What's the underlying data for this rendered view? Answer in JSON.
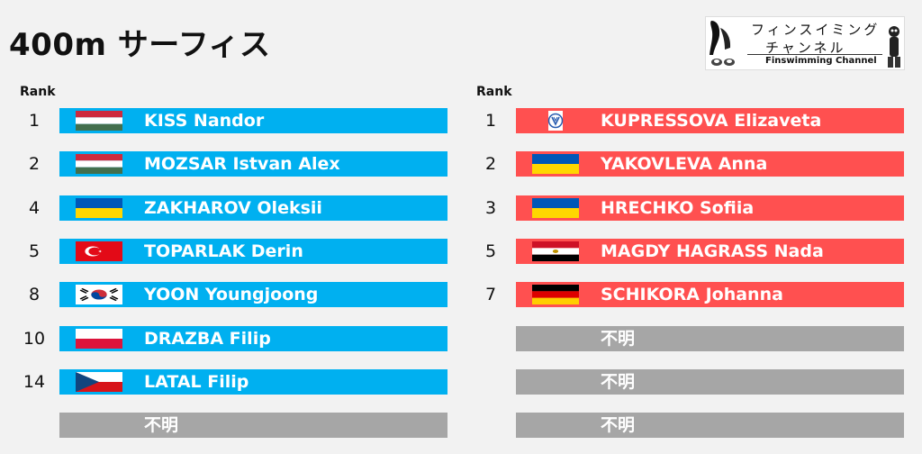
{
  "title": "400m サーフィス",
  "logo": {
    "line1": "フィンスイミング",
    "line2": "チャンネル",
    "line3": "Finswimming Channel"
  },
  "rank_header": "Rank",
  "unknown_label": "不明",
  "men": [
    {
      "rank": "1",
      "name": "KISS Nandor",
      "flag": "hungary"
    },
    {
      "rank": "2",
      "name": "MOZSAR Istvan Alex",
      "flag": "hungary"
    },
    {
      "rank": "4",
      "name": "ZAKHAROV Oleksii",
      "flag": "ukraine"
    },
    {
      "rank": "5",
      "name": "TOPARLAK Derin",
      "flag": "turkey"
    },
    {
      "rank": "8",
      "name": "YOON Youngjoong",
      "flag": "south-korea"
    },
    {
      "rank": "10",
      "name": "DRAZBA Filip",
      "flag": "poland"
    },
    {
      "rank": "14",
      "name": "LATAL Filip",
      "flag": "czech-republic"
    },
    {
      "rank": "",
      "name": "不明",
      "flag": ""
    }
  ],
  "women": [
    {
      "rank": "1",
      "name": "KUPRESSOVA Elizaveta",
      "flag": "neutral-emblem"
    },
    {
      "rank": "2",
      "name": "YAKOVLEVA Anna",
      "flag": "ukraine"
    },
    {
      "rank": "3",
      "name": "HRECHKO Sofiia",
      "flag": "ukraine"
    },
    {
      "rank": "5",
      "name": "MAGDY HAGRASS Nada",
      "flag": "egypt"
    },
    {
      "rank": "7",
      "name": "SCHIKORA Johanna",
      "flag": "germany"
    },
    {
      "rank": "",
      "name": "不明",
      "flag": ""
    },
    {
      "rank": "",
      "name": "不明",
      "flag": ""
    },
    {
      "rank": "",
      "name": "不明",
      "flag": ""
    }
  ],
  "colors": {
    "men_bar": "#00b0f0",
    "women_bar": "#ff5050",
    "unknown_bar": "#a6a6a6"
  }
}
